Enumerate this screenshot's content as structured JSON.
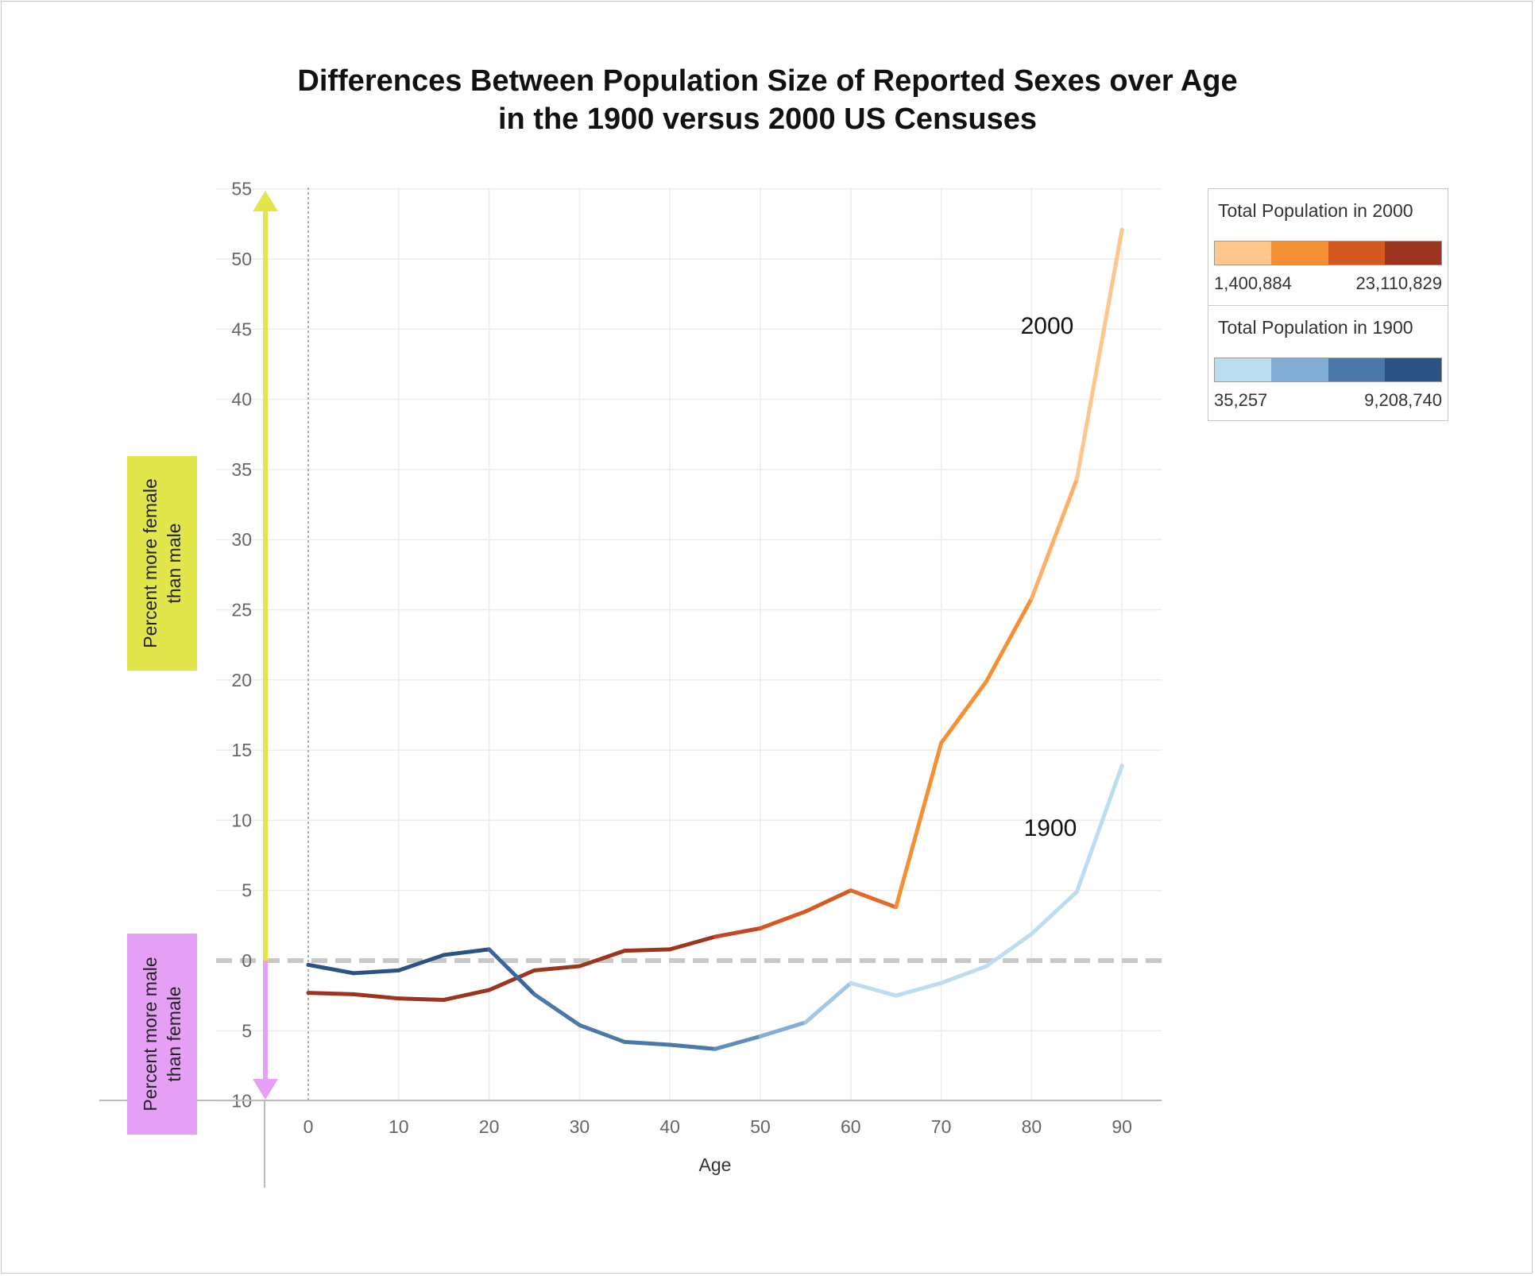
{
  "title_lines": [
    "Differences Between Population Size of Reported Sexes over Age",
    "in the 1900 versus 2000 US Censuses"
  ],
  "colors": {
    "up_arrow": "#e2e64a",
    "down_arrow": "#e5a0f5",
    "zero_line": "#c8c8c8",
    "grid": "#ececec"
  },
  "direction_labels": {
    "up": [
      "Percent more female",
      "than male"
    ],
    "down": [
      "Percent more male",
      "than female"
    ]
  },
  "legend": [
    {
      "title": "Total Population in 2000",
      "ramp": [
        "#fdc68a",
        "#f39034",
        "#d55a22",
        "#9c3520"
      ],
      "min": "1,400,884",
      "max": "23,110,829"
    },
    {
      "title": "Total Population in 1900",
      "ramp": [
        "#bcdcf0",
        "#80aed6",
        "#4a78a8",
        "#2a5283"
      ],
      "min": "35,257",
      "max": "9,208,740"
    }
  ],
  "chart_data": {
    "type": "line",
    "xlabel": "Age",
    "ylabel": "",
    "xlim": [
      -5,
      95
    ],
    "ylim": [
      -10,
      55
    ],
    "x_ticks": [
      0,
      10,
      20,
      30,
      40,
      50,
      60,
      70,
      80,
      90
    ],
    "y_ticks": [
      -10,
      -5,
      0,
      5,
      10,
      15,
      20,
      25,
      30,
      35,
      40,
      45,
      50,
      55
    ],
    "y_tick_labels": [
      "10",
      "5",
      "0",
      "5",
      "10",
      "15",
      "20",
      "25",
      "30",
      "35",
      "40",
      "45",
      "50",
      "55"
    ],
    "grid": true,
    "reference_line": 0,
    "series": [
      {
        "name": "2000",
        "x": [
          0,
          5,
          10,
          15,
          20,
          25,
          30,
          35,
          40,
          45,
          50,
          55,
          60,
          65,
          70,
          75,
          80,
          85,
          90
        ],
        "values": [
          -2.3,
          -2.4,
          -2.7,
          -2.8,
          -2.1,
          -0.7,
          -0.4,
          0.7,
          0.8,
          1.7,
          2.3,
          3.5,
          5.0,
          3.8,
          15.5,
          19.9,
          25.8,
          34.3,
          52.1
        ],
        "segment_colors": [
          "#9c3520",
          "#9c3520",
          "#9c3520",
          "#9c3520",
          "#9c3520",
          "#9c3520",
          "#9c3520",
          "#9c3520",
          "#9c3520",
          "#c4462a",
          "#d55a22",
          "#d55a22",
          "#e26a28",
          "#f39034",
          "#f39034",
          "#f39034",
          "#fdae68",
          "#fdc68a"
        ]
      },
      {
        "name": "1900",
        "x": [
          0,
          5,
          10,
          15,
          20,
          25,
          30,
          35,
          40,
          45,
          50,
          55,
          60,
          65,
          70,
          75,
          80,
          85,
          90
        ],
        "values": [
          -0.3,
          -0.9,
          -0.7,
          0.4,
          0.8,
          -2.4,
          -4.6,
          -5.8,
          -6.0,
          -6.3,
          -5.4,
          -4.4,
          -1.6,
          -2.5,
          -1.6,
          -0.4,
          1.9,
          4.9,
          13.9
        ],
        "segment_colors": [
          "#2a5283",
          "#2a5283",
          "#2a5283",
          "#2a5283",
          "#3a659a",
          "#4a78a8",
          "#4a78a8",
          "#4a78a8",
          "#4a78a8",
          "#5d8cbe",
          "#80aed6",
          "#a2c7e6",
          "#bcdcf0",
          "#bcdcf0",
          "#bcdcf0",
          "#bcdcf0",
          "#bcdcf0",
          "#bcdcf0"
        ]
      }
    ]
  }
}
